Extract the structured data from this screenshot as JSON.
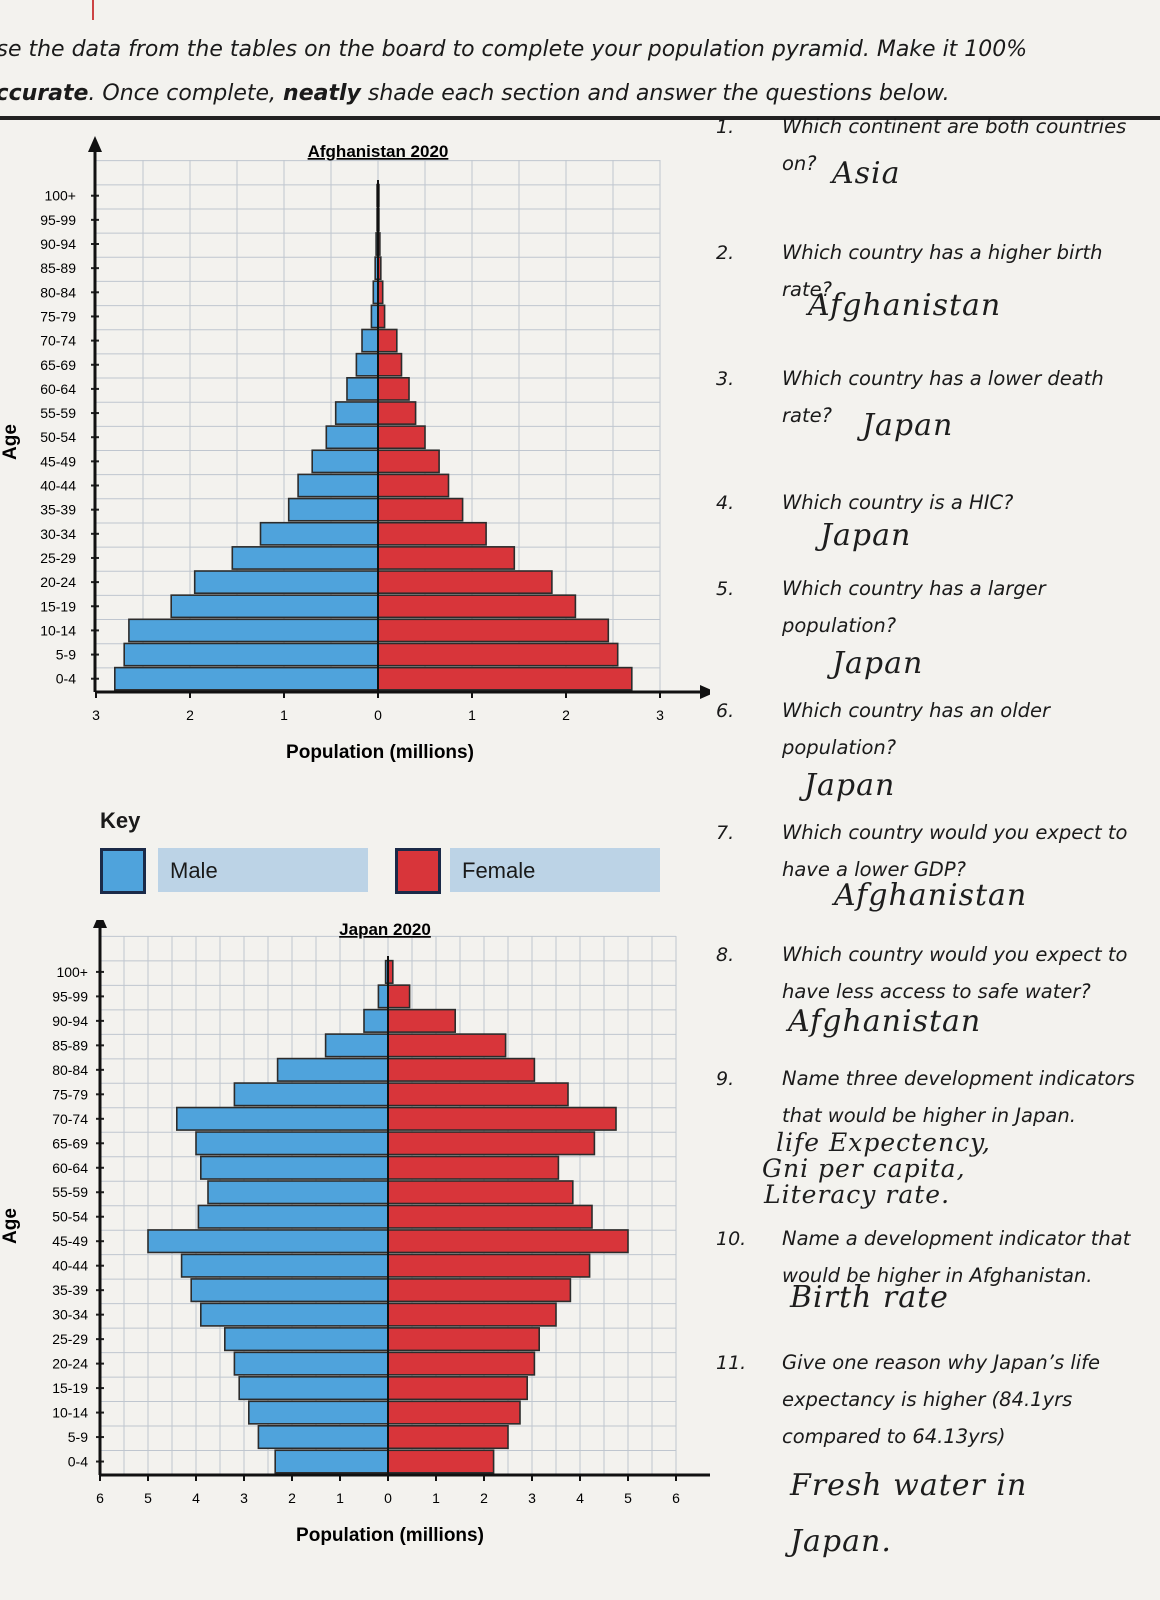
{
  "instructions": {
    "line1": "Jse the data from the tables on the board to complete your population pyramid. Make it 100%",
    "line2_bold1": "ıccurate",
    "line2_mid": ". Once complete, ",
    "line2_bold2": "neatly",
    "line2_end": " shade each section and answer the questions below."
  },
  "key": {
    "title": "Key",
    "male_label": "Male",
    "female_label": "Female",
    "male_color": "#4fa3dc",
    "female_color": "#d8353a"
  },
  "chart_data": [
    {
      "type": "bar",
      "orientation": "horizontal-pyramid",
      "title": "Afghanistan 2020",
      "xlabel": "Population (millions)",
      "ylabel": "Age",
      "x_ticks": [
        "3",
        "2",
        "1",
        "0",
        "1",
        "2",
        "3"
      ],
      "xlim": [
        -3,
        3
      ],
      "grid": true,
      "categories": [
        "0-4",
        "5-9",
        "10-14",
        "15-19",
        "20-24",
        "25-29",
        "30-34",
        "35-39",
        "40-44",
        "45-49",
        "50-54",
        "55-59",
        "60-64",
        "65-69",
        "70-74",
        "75-79",
        "80-84",
        "85-89",
        "90-94",
        "95-99",
        "100+"
      ],
      "series": [
        {
          "name": "Male",
          "values": [
            2.8,
            2.7,
            2.65,
            2.2,
            1.95,
            1.55,
            1.25,
            0.95,
            0.85,
            0.7,
            0.55,
            0.45,
            0.33,
            0.23,
            0.17,
            0.07,
            0.05,
            0.03,
            0.02,
            0.01,
            0.01
          ]
        },
        {
          "name": "Female",
          "values": [
            2.7,
            2.55,
            2.45,
            2.1,
            1.85,
            1.45,
            1.15,
            0.9,
            0.75,
            0.65,
            0.5,
            0.4,
            0.33,
            0.25,
            0.2,
            0.07,
            0.05,
            0.03,
            0.02,
            0.01,
            0.01
          ]
        }
      ]
    },
    {
      "type": "bar",
      "orientation": "horizontal-pyramid",
      "title": "Japan 2020",
      "xlabel": "Population (millions)",
      "ylabel": "Age",
      "x_ticks": [
        "6",
        "5",
        "4",
        "3",
        "2",
        "1",
        "0",
        "1",
        "2",
        "3",
        "4",
        "5",
        "6"
      ],
      "xlim": [
        -6,
        6
      ],
      "grid": true,
      "categories": [
        "0-4",
        "5-9",
        "10-14",
        "15-19",
        "20-24",
        "25-29",
        "30-34",
        "35-39",
        "40-44",
        "45-49",
        "50-54",
        "55-59",
        "60-64",
        "65-69",
        "70-74",
        "75-79",
        "80-84",
        "85-89",
        "90-94",
        "95-99",
        "100+"
      ],
      "series": [
        {
          "name": "Male",
          "values": [
            2.35,
            2.7,
            2.9,
            3.1,
            3.2,
            3.4,
            3.9,
            4.1,
            4.3,
            5.0,
            3.95,
            3.75,
            3.9,
            4.0,
            4.4,
            3.2,
            2.3,
            1.3,
            0.5,
            0.2,
            0.05
          ]
        },
        {
          "name": "Female",
          "values": [
            2.2,
            2.5,
            2.75,
            2.9,
            3.05,
            3.15,
            3.5,
            3.8,
            4.2,
            5.0,
            4.25,
            3.85,
            3.55,
            4.3,
            4.75,
            3.75,
            3.05,
            2.45,
            1.4,
            0.45,
            0.1
          ]
        }
      ]
    }
  ],
  "questions": [
    {
      "num": "1.",
      "text": [
        "Which continent are both countries",
        "on?"
      ],
      "answer": "Asia"
    },
    {
      "num": "2.",
      "text": [
        "Which country has a higher birth",
        "rate?"
      ],
      "answer": "Afghanistan"
    },
    {
      "num": "3.",
      "text": [
        "Which country has a lower death",
        "rate?"
      ],
      "answer": "Japan"
    },
    {
      "num": "4.",
      "text": [
        "Which country is a HIC?"
      ],
      "answer": "Japan"
    },
    {
      "num": "5.",
      "text": [
        "Which country has a larger",
        "population?"
      ],
      "answer": "Japan"
    },
    {
      "num": "6.",
      "text": [
        "Which country has an older",
        "population?"
      ],
      "answer": "Japan"
    },
    {
      "num": "7.",
      "text": [
        "Which country would you expect to",
        "have a lower GDP?"
      ],
      "answer": "Afghanistan"
    },
    {
      "num": "8.",
      "text": [
        "Which country would you expect to",
        "have less access to safe water?"
      ],
      "answer": "Afghanistan"
    },
    {
      "num": "9.",
      "text": [
        "Name three development indicators",
        "that would be higher in Japan."
      ],
      "answer": [
        "life Expectency,",
        "Gni per capita,",
        "Literacy rate."
      ]
    },
    {
      "num": "10.",
      "text": [
        "Name a development indicator that",
        "would be higher in Afghanistan."
      ],
      "answer": "Birth rate"
    },
    {
      "num": "11.",
      "text": [
        "Give one reason why Japan’s life",
        "expectancy is higher (84.1yrs",
        "compared to 64.13yrs)"
      ],
      "answer": [
        "Fresh water in",
        "Japan."
      ]
    }
  ]
}
